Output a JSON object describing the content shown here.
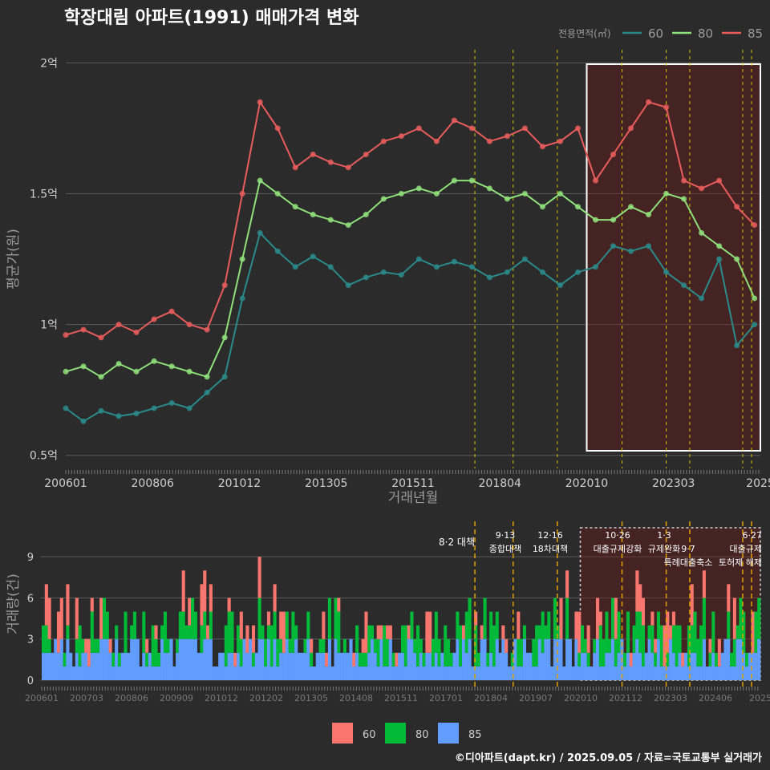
{
  "title": "학장대림 아파트(1991) 매매가격 변화",
  "footer": "©디아파트(dapt.kr) / 2025.09.05 / 자료=국토교통부 실거래가",
  "chart_data": [
    {
      "type": "line",
      "title": "학장대림 아파트(1991) 매매가격 변화",
      "xlabel": "거래년월",
      "ylabel": "평균가(원)",
      "legend_title": "전용면적(㎡)",
      "legend_position": "top-right",
      "x_ticks": [
        "200601",
        "200806",
        "201012",
        "201305",
        "201511",
        "201804",
        "202010",
        "202303",
        "2025"
      ],
      "y_ticks": [
        "0.5억",
        "1억",
        "1.5억",
        "2억"
      ],
      "ylim": [
        0.45,
        2.05
      ],
      "xlim": [
        "2006-01",
        "2025-09"
      ],
      "grid": true,
      "highlight_box": [
        "2020-10",
        "2025-09"
      ],
      "event_lines": [
        "2017-08",
        "2018-09",
        "2019-12",
        "2021-10",
        "2023-01",
        "2023-09",
        "2025-03",
        "2025-06"
      ],
      "series": [
        {
          "name": "60",
          "color": "#2a8a8a",
          "x": [
            "2006-01",
            "2006-07",
            "2007-01",
            "2007-07",
            "2008-01",
            "2008-07",
            "2009-01",
            "2009-07",
            "2010-01",
            "2010-07",
            "2011-01",
            "2011-07",
            "2012-01",
            "2012-07",
            "2013-01",
            "2013-07",
            "2014-01",
            "2014-07",
            "2015-01",
            "2015-07",
            "2016-01",
            "2016-07",
            "2017-01",
            "2017-07",
            "2018-01",
            "2018-07",
            "2019-01",
            "2019-07",
            "2020-01",
            "2020-07",
            "2021-01",
            "2021-07",
            "2022-01",
            "2022-07",
            "2023-01",
            "2023-07",
            "2024-01",
            "2024-07",
            "2025-01",
            "2025-07"
          ],
          "y": [
            0.68,
            0.63,
            0.67,
            0.65,
            0.66,
            0.68,
            0.7,
            0.68,
            0.74,
            0.8,
            1.1,
            1.35,
            1.28,
            1.22,
            1.26,
            1.22,
            1.15,
            1.18,
            1.2,
            1.19,
            1.25,
            1.22,
            1.24,
            1.22,
            1.18,
            1.2,
            1.25,
            1.2,
            1.15,
            1.2,
            1.22,
            1.3,
            1.28,
            1.3,
            1.2,
            1.15,
            1.1,
            1.25,
            0.92,
            1.0
          ]
        },
        {
          "name": "80",
          "color": "#8fe07a",
          "x": [
            "2006-01",
            "2006-07",
            "2007-01",
            "2007-07",
            "2008-01",
            "2008-07",
            "2009-01",
            "2009-07",
            "2010-01",
            "2010-07",
            "2011-01",
            "2011-07",
            "2012-01",
            "2012-07",
            "2013-01",
            "2013-07",
            "2014-01",
            "2014-07",
            "2015-01",
            "2015-07",
            "2016-01",
            "2016-07",
            "2017-01",
            "2017-07",
            "2018-01",
            "2018-07",
            "2019-01",
            "2019-07",
            "2020-01",
            "2020-07",
            "2021-01",
            "2021-07",
            "2022-01",
            "2022-07",
            "2023-01",
            "2023-07",
            "2024-01",
            "2024-07",
            "2025-01",
            "2025-07"
          ],
          "y": [
            0.82,
            0.84,
            0.8,
            0.85,
            0.82,
            0.86,
            0.84,
            0.82,
            0.8,
            0.95,
            1.25,
            1.55,
            1.5,
            1.45,
            1.42,
            1.4,
            1.38,
            1.42,
            1.48,
            1.5,
            1.52,
            1.5,
            1.55,
            1.55,
            1.52,
            1.48,
            1.5,
            1.45,
            1.5,
            1.45,
            1.4,
            1.4,
            1.45,
            1.42,
            1.5,
            1.48,
            1.35,
            1.3,
            1.25,
            1.1
          ]
        },
        {
          "name": "85",
          "color": "#e85c5c",
          "x": [
            "2006-01",
            "2006-07",
            "2007-01",
            "2007-07",
            "2008-01",
            "2008-07",
            "2009-01",
            "2009-07",
            "2010-01",
            "2010-07",
            "2011-01",
            "2011-07",
            "2012-01",
            "2012-07",
            "2013-01",
            "2013-07",
            "2014-01",
            "2014-07",
            "2015-01",
            "2015-07",
            "2016-01",
            "2016-07",
            "2017-01",
            "2017-07",
            "2018-01",
            "2018-07",
            "2019-01",
            "2019-07",
            "2020-01",
            "2020-07",
            "2021-01",
            "2021-07",
            "2022-01",
            "2022-07",
            "2023-01",
            "2023-07",
            "2024-01",
            "2024-07",
            "2025-01",
            "2025-07"
          ],
          "y": [
            0.96,
            0.98,
            0.95,
            1.0,
            0.97,
            1.02,
            1.05,
            1.0,
            0.98,
            1.15,
            1.5,
            1.85,
            1.75,
            1.6,
            1.65,
            1.62,
            1.6,
            1.65,
            1.7,
            1.72,
            1.75,
            1.7,
            1.78,
            1.75,
            1.7,
            1.72,
            1.75,
            1.68,
            1.7,
            1.75,
            1.55,
            1.65,
            1.75,
            1.85,
            1.83,
            1.55,
            1.52,
            1.55,
            1.45,
            1.38
          ]
        }
      ]
    },
    {
      "type": "bar",
      "stacked": true,
      "ylabel": "거래량(건)",
      "y_ticks": [
        "0",
        "3",
        "6",
        "9"
      ],
      "ylim": [
        0,
        11
      ],
      "x_ticks": [
        "200601",
        "200703",
        "200806",
        "200909",
        "201012",
        "201202",
        "201305",
        "201408",
        "201511",
        "201701",
        "201804",
        "201907",
        "202010",
        "202112",
        "202303",
        "202406",
        "2025"
      ],
      "legend_position": "bottom",
      "series_names": [
        "60",
        "80",
        "85"
      ],
      "series_colors": [
        "#f8766d",
        "#00ba38",
        "#619cff"
      ],
      "annotations": [
        {
          "date": "2017-08",
          "label": "8·2 대책"
        },
        {
          "date": "2018-09",
          "label": "9·13 종합대책"
        },
        {
          "date": "2019-12",
          "label": "12·16 18차대책"
        },
        {
          "date": "2021-10",
          "label": "10·26 대출규제강화"
        },
        {
          "date": "2023-01",
          "label": "1·3 규제완화"
        },
        {
          "date": "2023-09",
          "label": "9·7 특례대출축소"
        },
        {
          "date": "2025-03",
          "label": "토허제 해제"
        },
        {
          "date": "2025-06",
          "label": "6·27 대출규제"
        }
      ],
      "legend": [
        {
          "name": "60",
          "color": "#f8766d"
        },
        {
          "name": "80",
          "color": "#00ba38"
        },
        {
          "name": "85",
          "color": "#619cff"
        }
      ]
    }
  ]
}
